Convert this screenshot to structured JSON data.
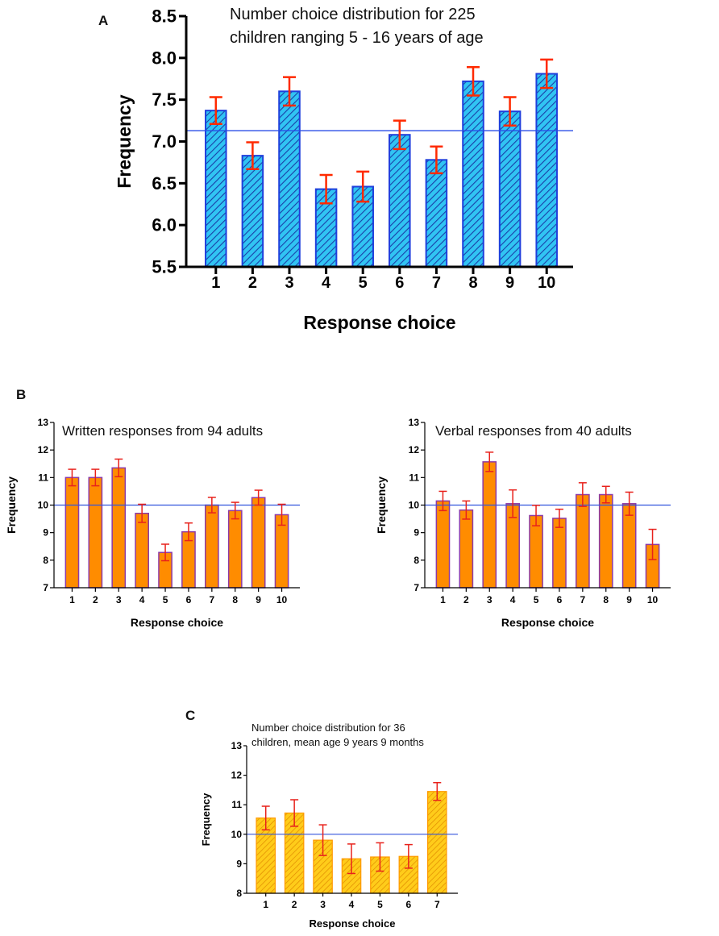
{
  "chart_data": [
    {
      "panel": "A",
      "type": "bar",
      "title": [
        "Number choice distribution for 225",
        "children ranging 5 - 16 years of age"
      ],
      "xlabel": "Response choice",
      "ylabel": "Frequency",
      "categories": [
        "1",
        "2",
        "3",
        "4",
        "5",
        "6",
        "7",
        "8",
        "9",
        "10"
      ],
      "values": [
        7.37,
        6.83,
        7.6,
        6.43,
        6.46,
        7.08,
        6.78,
        7.72,
        7.36,
        7.81
      ],
      "errors": [
        0.16,
        0.16,
        0.17,
        0.17,
        0.18,
        0.17,
        0.16,
        0.17,
        0.17,
        0.17
      ],
      "reference_line": 7.13,
      "ylim": [
        5.5,
        8.5
      ],
      "yticks": [
        "5.5",
        "6.0",
        "6.5",
        "7.0",
        "7.5",
        "8.0",
        "8.5"
      ],
      "bar_fill": "#31c4f3",
      "bar_hatch": "#1a3fa8",
      "bar_edge": "#1f3fdc",
      "error_color": "#ff2a00",
      "line_color": "#2b4ee6"
    },
    {
      "panel": "B",
      "type": "bar",
      "title": [
        "Written responses from 94 adults"
      ],
      "xlabel": "Response choice",
      "ylabel": "Frequency",
      "categories": [
        "1",
        "2",
        "3",
        "4",
        "5",
        "6",
        "7",
        "8",
        "9",
        "10"
      ],
      "values": [
        11.0,
        11.0,
        11.35,
        9.7,
        8.28,
        9.03,
        10.0,
        9.8,
        10.27,
        9.65
      ],
      "errors": [
        0.3,
        0.3,
        0.32,
        0.33,
        0.3,
        0.32,
        0.28,
        0.3,
        0.27,
        0.38
      ],
      "reference_line": 10.0,
      "ylim": [
        7,
        13
      ],
      "yticks": [
        "7",
        "8",
        "9",
        "10",
        "11",
        "12",
        "13"
      ],
      "bar_fill": "#ff8c00",
      "bar_edge": "#8c3aa6",
      "error_color": "#e8221c",
      "line_color": "#3355dd"
    },
    {
      "panel": "B",
      "type": "bar",
      "title": [
        "Verbal responses from 40 adults"
      ],
      "xlabel": "Response choice",
      "ylabel": "Frequency",
      "categories": [
        "1",
        "2",
        "3",
        "4",
        "5",
        "6",
        "7",
        "8",
        "9",
        "10"
      ],
      "values": [
        10.15,
        9.82,
        11.57,
        10.05,
        9.62,
        9.52,
        10.38,
        10.38,
        10.05,
        8.57
      ],
      "errors": [
        0.35,
        0.33,
        0.35,
        0.5,
        0.37,
        0.33,
        0.43,
        0.3,
        0.42,
        0.55
      ],
      "reference_line": 10.0,
      "ylim": [
        7,
        13
      ],
      "yticks": [
        "7",
        "8",
        "9",
        "10",
        "11",
        "12",
        "13"
      ],
      "bar_fill": "#ff8c00",
      "bar_edge": "#8c3aa6",
      "error_color": "#e8221c",
      "line_color": "#3355dd"
    },
    {
      "panel": "C",
      "type": "bar",
      "title": [
        "Number choice distribution for 36",
        "children, mean age 9 years 9 months"
      ],
      "xlabel": "Response choice",
      "ylabel": "Frequency",
      "categories": [
        "1",
        "2",
        "3",
        "4",
        "5",
        "6",
        "7"
      ],
      "values": [
        10.55,
        10.72,
        9.8,
        9.17,
        9.23,
        9.25,
        11.45
      ],
      "errors": [
        0.4,
        0.45,
        0.52,
        0.5,
        0.48,
        0.4,
        0.3
      ],
      "reference_line": 10.0,
      "ylim": [
        8,
        13
      ],
      "yticks": [
        "8",
        "9",
        "10",
        "11",
        "12",
        "13"
      ],
      "bar_fill": "#ffcc1a",
      "bar_hatch": "#e08a00",
      "bar_edge": "#ff9900",
      "error_color": "#e8221c",
      "line_color": "#3355dd"
    }
  ]
}
